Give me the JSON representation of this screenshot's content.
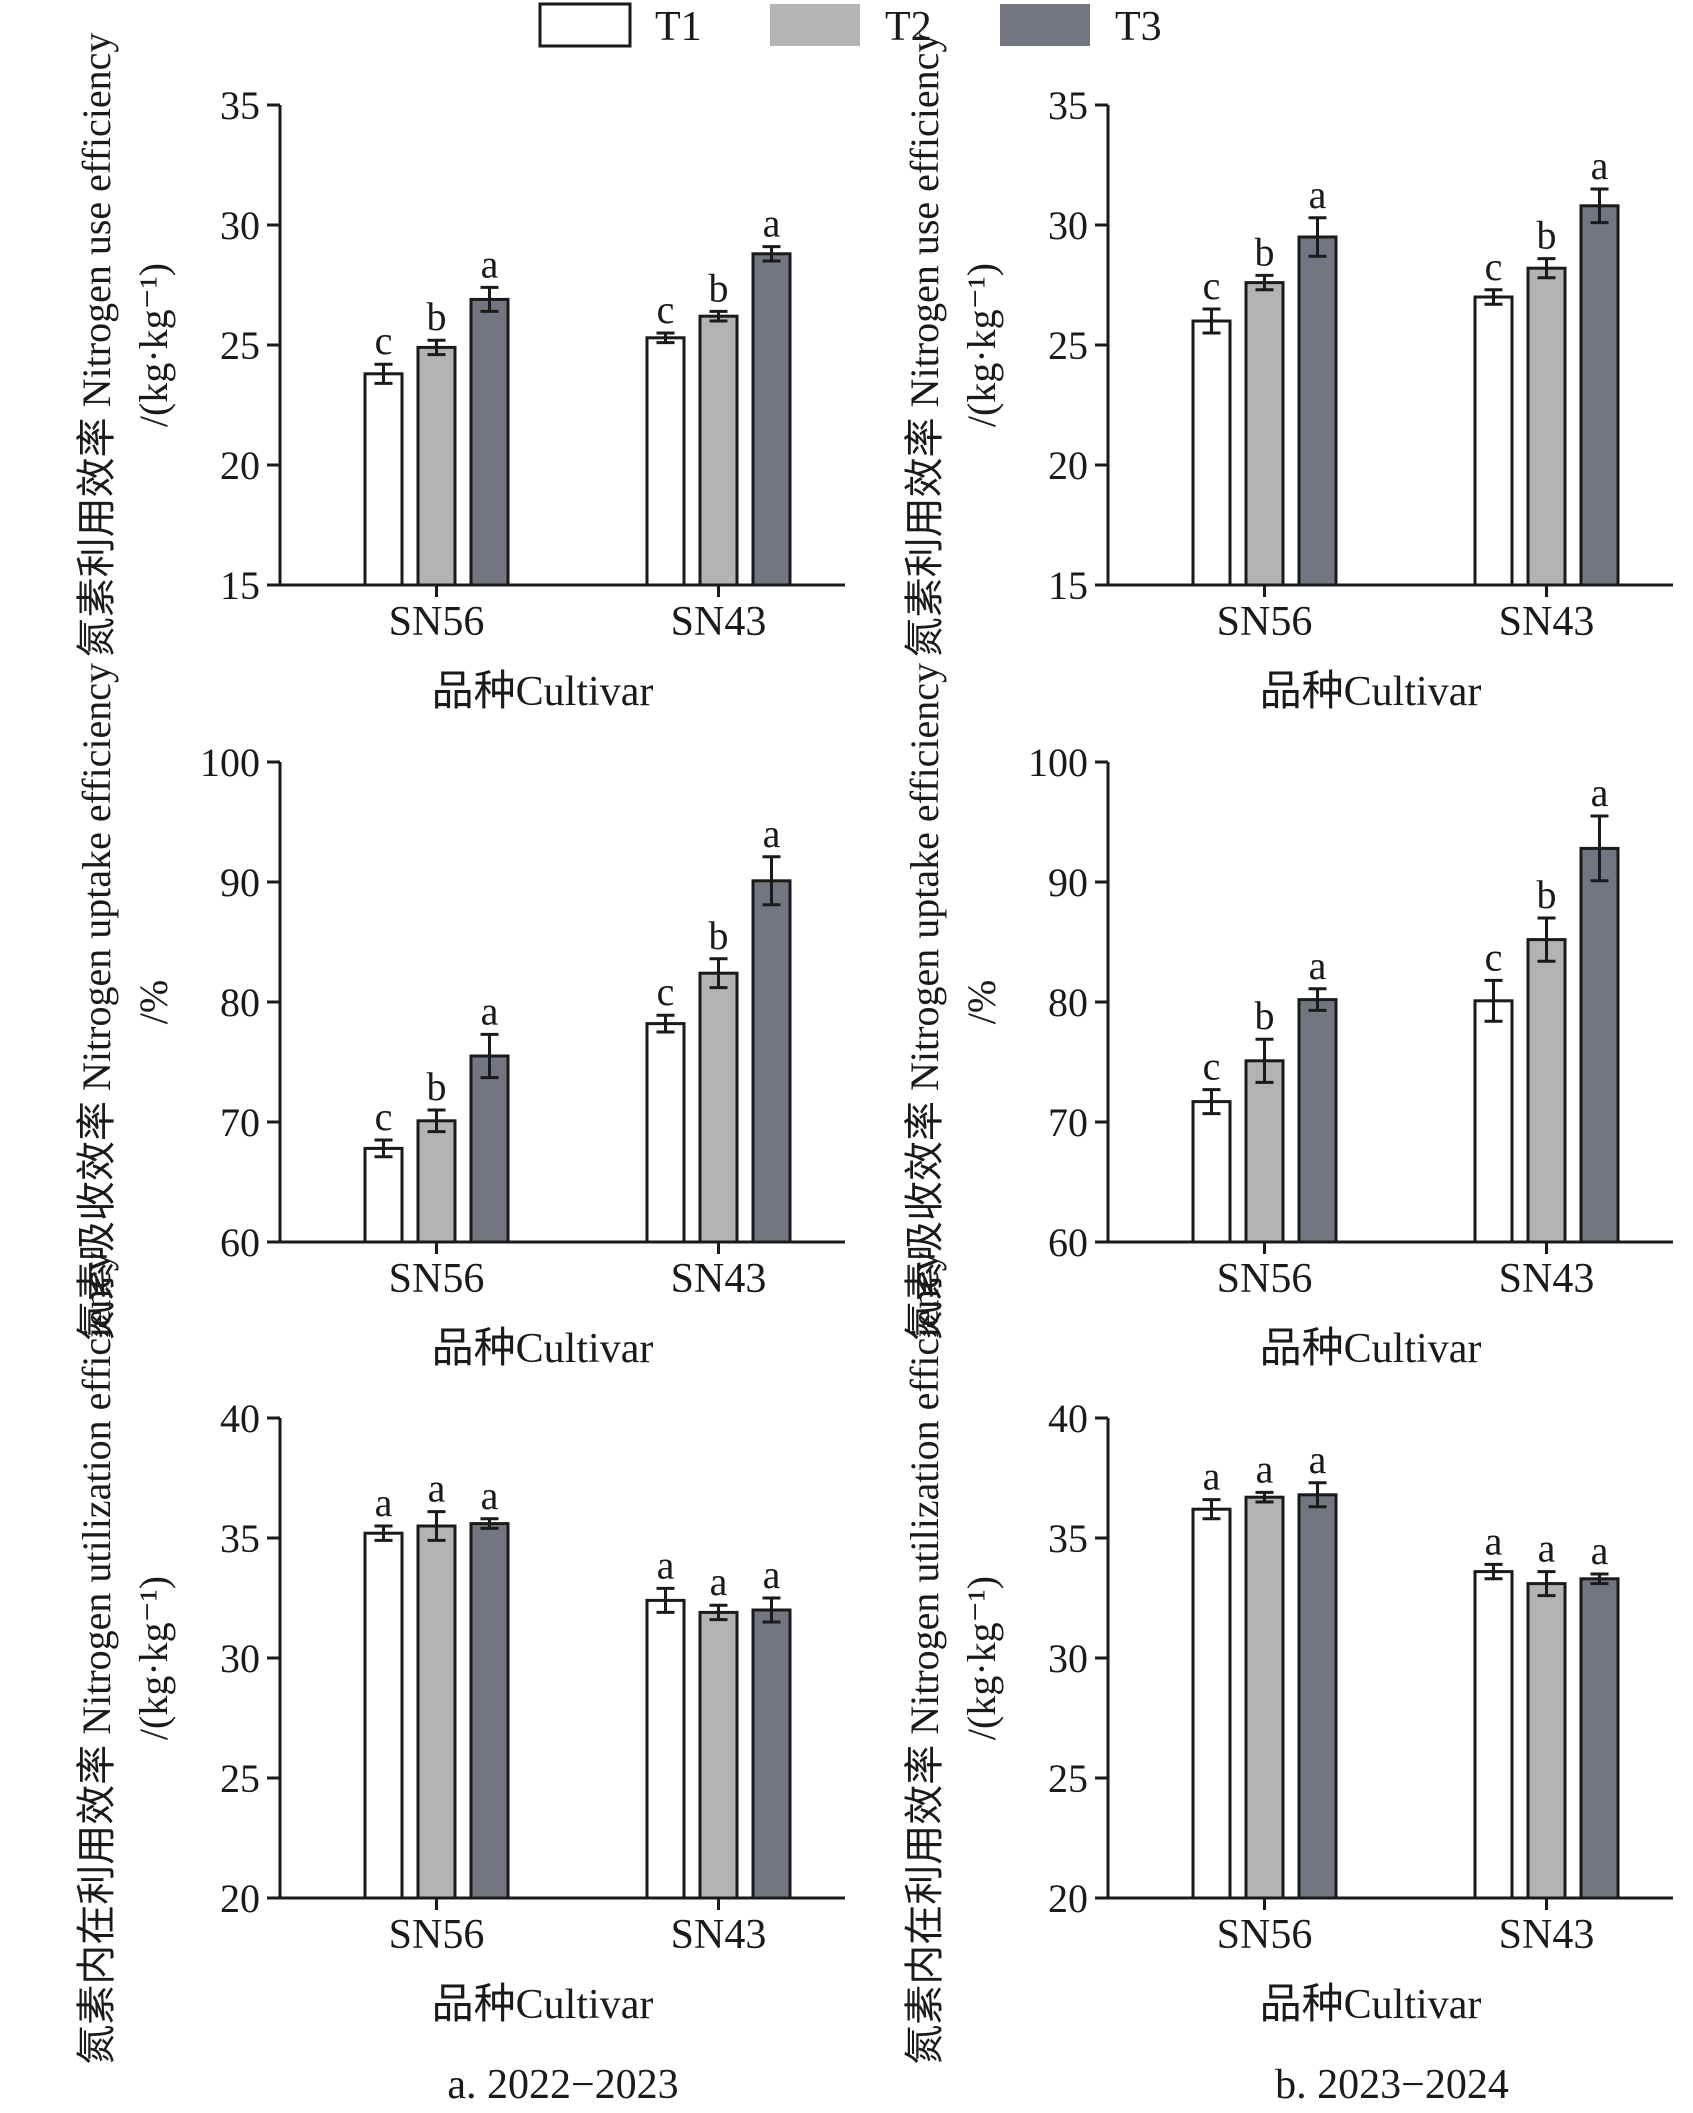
{
  "legend": {
    "items": [
      {
        "label": "T1",
        "color": "#ffffff"
      },
      {
        "label": "T2",
        "color": "#b3b3b3"
      },
      {
        "label": "T3",
        "color": "#737680"
      }
    ]
  },
  "chart_data": [
    {
      "type": "bar",
      "panel": "a",
      "row": 0,
      "categories": [
        "SN56",
        "SN43"
      ],
      "series": [
        {
          "name": "T1",
          "values": [
            23.8,
            25.3
          ],
          "errors": [
            0.4,
            0.2
          ],
          "letters": [
            "c",
            "c"
          ]
        },
        {
          "name": "T2",
          "values": [
            24.9,
            26.2
          ],
          "errors": [
            0.3,
            0.2
          ],
          "letters": [
            "b",
            "b"
          ]
        },
        {
          "name": "T3",
          "values": [
            26.9,
            28.8
          ],
          "errors": [
            0.5,
            0.3
          ],
          "letters": [
            "a",
            "a"
          ]
        }
      ],
      "ylim": [
        15,
        35
      ],
      "yticks": [
        15,
        20,
        25,
        30,
        35
      ],
      "ylabel_cn": "氮素利用效率",
      "ylabel_en": "Nitrogen use efficiency",
      "ylabel_unit": "/(kg·kg⁻¹)",
      "xlabel": "品种Cultivar"
    },
    {
      "type": "bar",
      "panel": "b",
      "row": 0,
      "categories": [
        "SN56",
        "SN43"
      ],
      "series": [
        {
          "name": "T1",
          "values": [
            26.0,
            27.0
          ],
          "errors": [
            0.5,
            0.3
          ],
          "letters": [
            "c",
            "c"
          ]
        },
        {
          "name": "T2",
          "values": [
            27.6,
            28.2
          ],
          "errors": [
            0.3,
            0.4
          ],
          "letters": [
            "b",
            "b"
          ]
        },
        {
          "name": "T3",
          "values": [
            29.5,
            30.8
          ],
          "errors": [
            0.8,
            0.7
          ],
          "letters": [
            "a",
            "a"
          ]
        }
      ],
      "ylim": [
        15,
        35
      ],
      "yticks": [
        15,
        20,
        25,
        30,
        35
      ],
      "ylabel_cn": "氮素利用效率",
      "ylabel_en": "Nitrogen use efficiency",
      "ylabel_unit": "/(kg·kg⁻¹)",
      "xlabel": "品种Cultivar"
    },
    {
      "type": "bar",
      "panel": "a",
      "row": 1,
      "categories": [
        "SN56",
        "SN43"
      ],
      "series": [
        {
          "name": "T1",
          "values": [
            67.8,
            78.2
          ],
          "errors": [
            0.7,
            0.7
          ],
          "letters": [
            "c",
            "c"
          ]
        },
        {
          "name": "T2",
          "values": [
            70.1,
            82.4
          ],
          "errors": [
            0.9,
            1.2
          ],
          "letters": [
            "b",
            "b"
          ]
        },
        {
          "name": "T3",
          "values": [
            75.5,
            90.1
          ],
          "errors": [
            1.8,
            2.0
          ],
          "letters": [
            "a",
            "a"
          ]
        }
      ],
      "ylim": [
        60,
        100
      ],
      "yticks": [
        60,
        70,
        80,
        90,
        100
      ],
      "ylabel_cn": "氮素吸收效率",
      "ylabel_en": "Nitrogen uptake efficiency",
      "ylabel_unit": "/%",
      "xlabel": "品种Cultivar"
    },
    {
      "type": "bar",
      "panel": "b",
      "row": 1,
      "categories": [
        "SN56",
        "SN43"
      ],
      "series": [
        {
          "name": "T1",
          "values": [
            71.7,
            80.1
          ],
          "errors": [
            1.0,
            1.7
          ],
          "letters": [
            "c",
            "c"
          ]
        },
        {
          "name": "T2",
          "values": [
            75.1,
            85.2
          ],
          "errors": [
            1.8,
            1.8
          ],
          "letters": [
            "b",
            "b"
          ]
        },
        {
          "name": "T3",
          "values": [
            80.2,
            92.8
          ],
          "errors": [
            0.9,
            2.7
          ],
          "letters": [
            "a",
            "a"
          ]
        }
      ],
      "ylim": [
        60,
        100
      ],
      "yticks": [
        60,
        70,
        80,
        90,
        100
      ],
      "ylabel_cn": "氮素吸收效率",
      "ylabel_en": "Nitrogen uptake efficiency",
      "ylabel_unit": "/%",
      "xlabel": "品种Cultivar"
    },
    {
      "type": "bar",
      "panel": "a",
      "row": 2,
      "categories": [
        "SN56",
        "SN43"
      ],
      "series": [
        {
          "name": "T1",
          "values": [
            35.2,
            32.4
          ],
          "errors": [
            0.3,
            0.5
          ],
          "letters": [
            "a",
            "a"
          ]
        },
        {
          "name": "T2",
          "values": [
            35.5,
            31.9
          ],
          "errors": [
            0.6,
            0.3
          ],
          "letters": [
            "a",
            "a"
          ]
        },
        {
          "name": "T3",
          "values": [
            35.6,
            32.0
          ],
          "errors": [
            0.2,
            0.5
          ],
          "letters": [
            "a",
            "a"
          ]
        }
      ],
      "ylim": [
        20,
        40
      ],
      "yticks": [
        20,
        25,
        30,
        35,
        40
      ],
      "ylabel_cn": "氮素内在利用效率",
      "ylabel_en": "Nitrogen utilization efficiency",
      "ylabel_unit": "/(kg·kg⁻¹)",
      "xlabel": "品种Cultivar"
    },
    {
      "type": "bar",
      "panel": "b",
      "row": 2,
      "categories": [
        "SN56",
        "SN43"
      ],
      "series": [
        {
          "name": "T1",
          "values": [
            36.2,
            33.6
          ],
          "errors": [
            0.4,
            0.3
          ],
          "letters": [
            "a",
            "a"
          ]
        },
        {
          "name": "T2",
          "values": [
            36.7,
            33.1
          ],
          "errors": [
            0.2,
            0.5
          ],
          "letters": [
            "a",
            "a"
          ]
        },
        {
          "name": "T3",
          "values": [
            36.8,
            33.3
          ],
          "errors": [
            0.5,
            0.2
          ],
          "letters": [
            "a",
            "a"
          ]
        }
      ],
      "ylim": [
        20,
        40
      ],
      "yticks": [
        20,
        25,
        30,
        35,
        40
      ],
      "ylabel_cn": "氮素内在利用效率",
      "ylabel_en": "Nitrogen utilization efficiency",
      "ylabel_unit": "/(kg·kg⁻¹)",
      "xlabel": "品种Cultivar"
    }
  ],
  "captions": {
    "a": "a. 2022−2023",
    "b": "b. 2023−2024"
  }
}
